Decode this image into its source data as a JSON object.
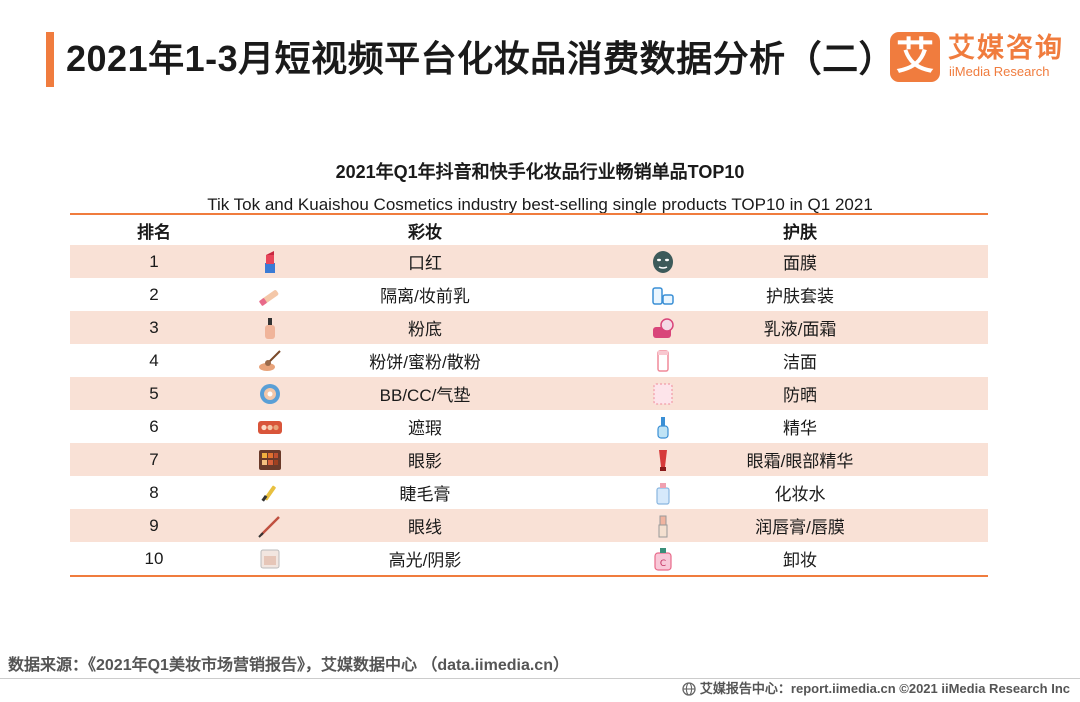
{
  "header": {
    "title": "2021年1-3月短视频平台化妆品消费数据分析（二）",
    "logo_mark": "艾",
    "logo_cn": "艾媒咨询",
    "logo_en": "iiMedia Research"
  },
  "table": {
    "title_cn": "2021年Q1年抖音和快手化妆品行业畅销单品TOP10",
    "title_en": "Tik Tok and Kuaishou Cosmetics industry best-selling single products TOP10 in Q1 2021",
    "headers": {
      "rank": "排名",
      "makeup": "彩妆",
      "skincare": "护肤"
    },
    "rows": [
      {
        "rank": "1",
        "makeup": "口红",
        "makeup_icon": "lipstick-icon",
        "skincare": "面膜",
        "skincare_icon": "face-mask-icon"
      },
      {
        "rank": "2",
        "makeup": "隔离/妆前乳",
        "makeup_icon": "primer-tube-icon",
        "skincare": "护肤套装",
        "skincare_icon": "skincare-set-icon"
      },
      {
        "rank": "3",
        "makeup": "粉底",
        "makeup_icon": "foundation-bottle-icon",
        "skincare": "乳液/面霜",
        "skincare_icon": "cream-jar-icon"
      },
      {
        "rank": "4",
        "makeup": "粉饼/蜜粉/散粉",
        "makeup_icon": "powder-brush-icon",
        "skincare": "洁面",
        "skincare_icon": "cleanser-tube-icon"
      },
      {
        "rank": "5",
        "makeup": "BB/CC/气垫",
        "makeup_icon": "cushion-compact-icon",
        "skincare": "防晒",
        "skincare_icon": "sunscreen-icon"
      },
      {
        "rank": "6",
        "makeup": "遮瑕",
        "makeup_icon": "concealer-palette-icon",
        "skincare": "精华",
        "skincare_icon": "serum-dropper-icon"
      },
      {
        "rank": "7",
        "makeup": "眼影",
        "makeup_icon": "eyeshadow-palette-icon",
        "skincare": "眼霜/眼部精华",
        "skincare_icon": "eye-cream-tube-icon"
      },
      {
        "rank": "8",
        "makeup": "睫毛膏",
        "makeup_icon": "mascara-icon",
        "skincare": "化妆水",
        "skincare_icon": "toner-bottle-icon"
      },
      {
        "rank": "9",
        "makeup": "眼线",
        "makeup_icon": "eyeliner-icon",
        "skincare": "润唇膏/唇膜",
        "skincare_icon": "lip-balm-icon"
      },
      {
        "rank": "10",
        "makeup": "高光/阴影",
        "makeup_icon": "highlighter-icon",
        "skincare": "卸妆",
        "skincare_icon": "makeup-remover-icon"
      }
    ]
  },
  "source": "数据来源：《2021年Q1美妆市场营销报告》，艾媒数据中心 （data.iimedia.cn）",
  "footer": "艾媒报告中心：report.iimedia.cn  ©2021  iiMedia Research  Inc",
  "colors": {
    "accent": "#f07c3e",
    "row_shade": "#f9e1d6"
  }
}
